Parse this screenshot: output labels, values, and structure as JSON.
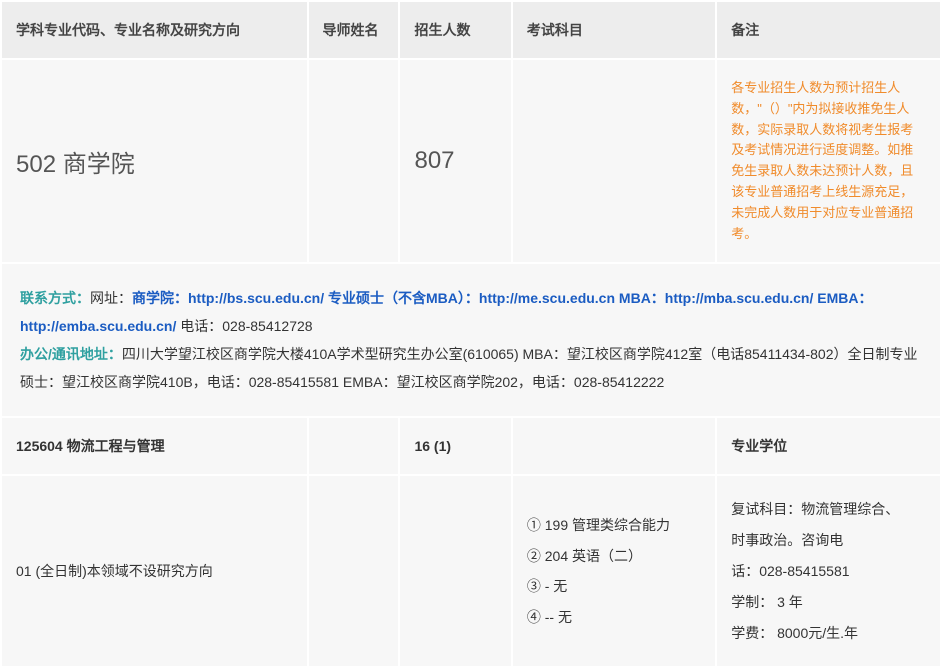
{
  "headers": {
    "col1": "学科专业代码、专业名称及研究方向",
    "col2": "导师姓名",
    "col3": "招生人数",
    "col4": "考试科目",
    "col5": "备注"
  },
  "school": {
    "code_name": "502 商学院",
    "enrollment": "807",
    "note": "各专业招生人数为预计招生人数，\"（）\"内为拟接收推免生人数，实际录取人数将视考生报考及考试情况进行适度调整。如推免生录取人数未达预计人数，且该专业普通招考上线生源充足，未完成人数用于对应专业普通招考。"
  },
  "contact": {
    "label1": "联系方式：",
    "text1a": "网址：",
    "link1a": "商学院：http://bs.scu.edu.cn/",
    "spacer1": "   ",
    "link1b": "专业硕士（不含MBA）：http://me.scu.edu.cn",
    "spacer2": "   ",
    "link1c": "MBA：http://mba.scu.edu.cn/",
    "spacer3": "   ",
    "link1d": "EMBA：http://emba.scu.edu.cn/",
    "spacer4": "   ",
    "text1b": "电话：028-85412728",
    "label2": "办公/通讯地址：",
    "text2": "四川大学望江校区商学院大楼410A学术型研究生办公室(610065) MBA：望江校区商学院412室（电话85411434-802）全日制专业硕士：望江校区商学院410B，电话：028-85415581 EMBA：望江校区商学院202，电话：028-85412222"
  },
  "major": {
    "code_name": "125604 物流工程与管理",
    "enrollment": "16 (1)",
    "remark_header": "专业学位"
  },
  "direction": {
    "name": "01 (全日制)本领域不设研究方向",
    "exam1": "① 199 管理类综合能力",
    "exam2": "② 204 英语（二）",
    "exam3": "③ - 无",
    "exam4": "④ -- 无",
    "remark1": "复试科目：物流管理综合、",
    "remark2": "时事政治。咨询电",
    "remark3": "话：028-85415581",
    "remark4": "学制： 3 年",
    "remark5": "学费： 8000元/生.年"
  },
  "colors": {
    "header_bg": "#ededed",
    "cell_bg": "#f7f7f7",
    "border": "#ffffff",
    "orange": "#f08b2b",
    "teal": "#2fa0a0",
    "blue": "#1b5cc2",
    "text": "#333333"
  }
}
